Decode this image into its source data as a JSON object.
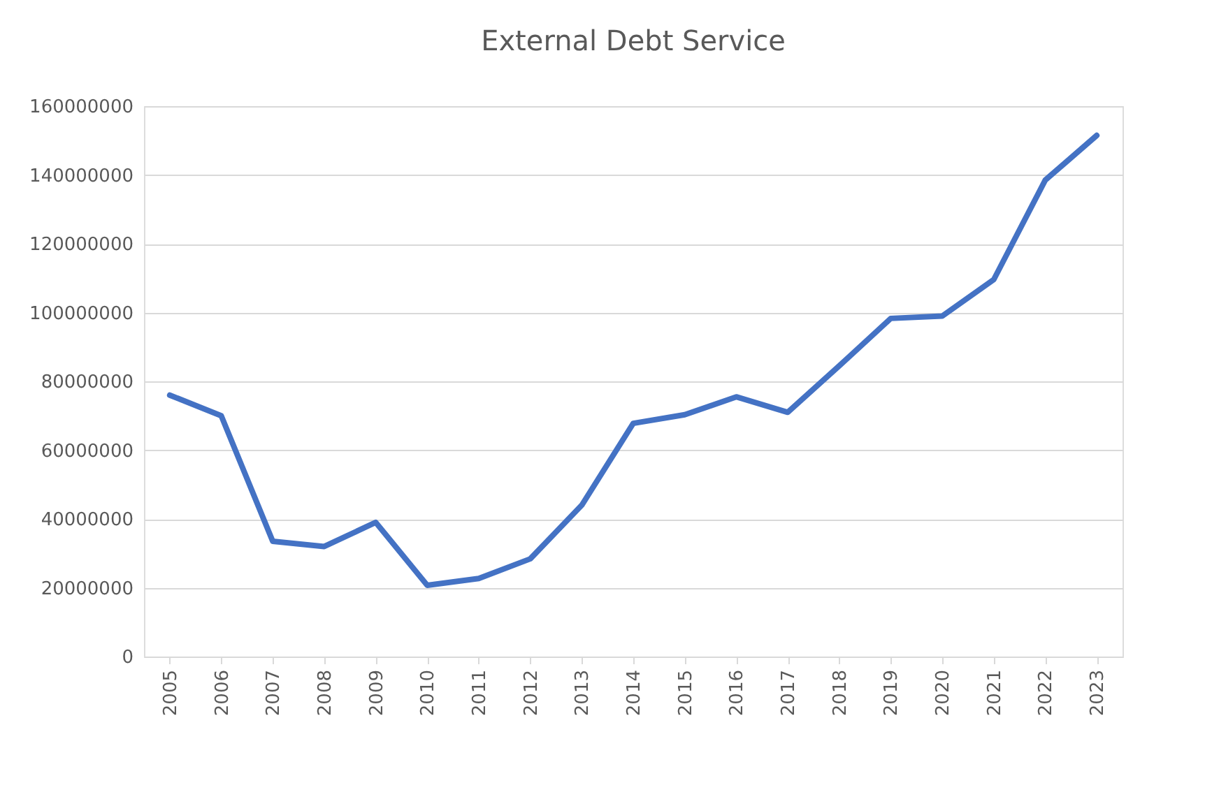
{
  "chart_data": {
    "type": "line",
    "title": "External Debt Service",
    "categories": [
      "2005",
      "2006",
      "2007",
      "2008",
      "2009",
      "2010",
      "2011",
      "2012",
      "2013",
      "2014",
      "2015",
      "2016",
      "2017",
      "2018",
      "2019",
      "2020",
      "2021",
      "2022",
      "2023"
    ],
    "series": [
      {
        "color": "#4472c4",
        "values": [
          76000000,
          70000000,
          33500000,
          32000000,
          39000000,
          20700000,
          22700000,
          28400000,
          44000000,
          67800000,
          70300000,
          75500000,
          71000000,
          84500000,
          98300000,
          99000000,
          109600000,
          138500000,
          151500000
        ]
      }
    ],
    "ylim": [
      0,
      160000000
    ],
    "yticks": [
      0,
      20000000,
      40000000,
      60000000,
      80000000,
      100000000,
      120000000,
      140000000,
      160000000
    ],
    "grid": "y",
    "marker": "none",
    "line_style": "solid"
  }
}
